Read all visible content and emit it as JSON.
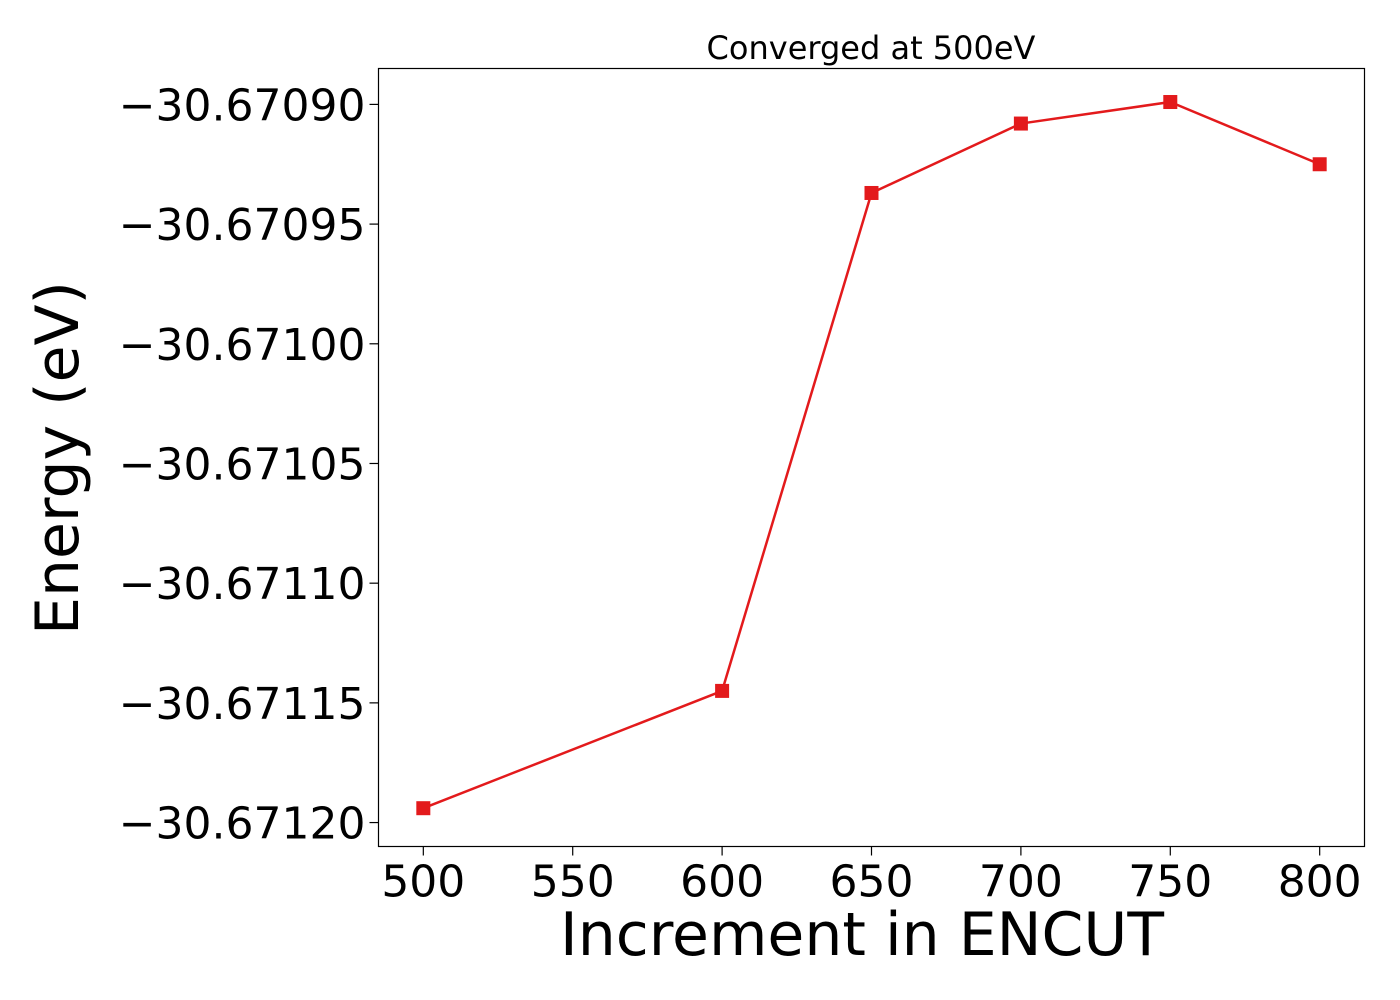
{
  "chart_data": {
    "type": "line",
    "title": "Converged at 500eV",
    "xlabel": "Increment in ENCUT",
    "ylabel": "Energy (eV)",
    "x": [
      500,
      600,
      650,
      700,
      750,
      800
    ],
    "series": [
      {
        "values": [
          -30.671194,
          -30.671145,
          -30.670937,
          -30.670908,
          -30.670899,
          -30.670925
        ],
        "color": "#e31a1c",
        "marker": "square"
      }
    ],
    "xlim": [
      485,
      815
    ],
    "ylim": [
      -30.67121,
      -30.670885
    ],
    "xticks": [
      500,
      550,
      600,
      650,
      700,
      750,
      800
    ],
    "xtick_labels": [
      "500",
      "550",
      "600",
      "650",
      "700",
      "750",
      "800"
    ],
    "yticks": [
      -30.6709,
      -30.67095,
      -30.671,
      -30.67105,
      -30.6711,
      -30.67115,
      -30.6712
    ],
    "ytick_labels": [
      "−30.67090",
      "−30.67095",
      "−30.67100",
      "−30.67105",
      "−30.67110",
      "−30.67115",
      "−30.67120"
    ],
    "grid": false,
    "legend": "none"
  }
}
